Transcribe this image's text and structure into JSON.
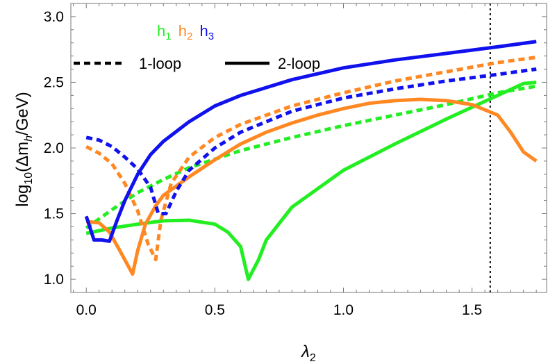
{
  "chart_data": {
    "type": "line",
    "xlabel_main": "λ",
    "xlabel_sub": "2",
    "ylabel_pre": "log",
    "ylabel_sub1": "10",
    "ylabel_mid": "(Δm",
    "ylabel_sub2": "h",
    "ylabel_post": "/GeV)",
    "xlim": [
      -0.06,
      1.79
    ],
    "ylim": [
      0.9,
      3.1
    ],
    "x_ticks": [
      0.0,
      0.5,
      1.0,
      1.5
    ],
    "x_tick_labels": [
      "0.0",
      "0.5",
      "1.0",
      "1.5"
    ],
    "y_ticks": [
      1.0,
      1.5,
      2.0,
      2.5,
      3.0
    ],
    "y_tick_labels": [
      "1.0",
      "1.5",
      "2.0",
      "2.5",
      "3.0"
    ],
    "reference_line": {
      "x": 1.5708,
      "style": "dotted",
      "color": "#000000"
    },
    "legend_hosts": [
      {
        "label": "h",
        "sub": "1",
        "color": "#22ee22"
      },
      {
        "label": "h",
        "sub": "2",
        "color": "#ff8822"
      },
      {
        "label": "h",
        "sub": "3",
        "color": "#1111ee"
      }
    ],
    "legend_styles": [
      {
        "label": "1-loop",
        "dash": true
      },
      {
        "label": "2-loop",
        "dash": false
      }
    ],
    "series": [
      {
        "host": "h1",
        "loop": "2-loop",
        "color": "#22ee22",
        "dash": false,
        "x": [
          0.0,
          0.1,
          0.2,
          0.3,
          0.4,
          0.5,
          0.55,
          0.6,
          0.63,
          0.67,
          0.7,
          0.8,
          1.0,
          1.2,
          1.4,
          1.6,
          1.7,
          1.75
        ],
        "y": [
          1.35,
          1.39,
          1.42,
          1.445,
          1.45,
          1.42,
          1.36,
          1.25,
          1.0,
          1.15,
          1.3,
          1.55,
          1.83,
          2.03,
          2.22,
          2.4,
          2.49,
          2.5
        ]
      },
      {
        "host": "h1",
        "loop": "1-loop",
        "color": "#22ee22",
        "dash": true,
        "x": [
          0.0,
          0.1,
          0.2,
          0.3,
          0.4,
          0.6,
          0.8,
          1.0,
          1.2,
          1.4,
          1.6,
          1.75
        ],
        "y": [
          1.39,
          1.53,
          1.66,
          1.76,
          1.85,
          1.98,
          2.08,
          2.17,
          2.25,
          2.33,
          2.42,
          2.47
        ]
      },
      {
        "host": "h2",
        "loop": "2-loop",
        "color": "#ff8822",
        "dash": false,
        "x": [
          0.0,
          0.05,
          0.09,
          0.13,
          0.18,
          0.2,
          0.23,
          0.27,
          0.3,
          0.4,
          0.5,
          0.6,
          0.7,
          0.8,
          0.9,
          1.0,
          1.1,
          1.2,
          1.3,
          1.4,
          1.5,
          1.6,
          1.65,
          1.7,
          1.75
        ],
        "y": [
          1.44,
          1.43,
          1.36,
          1.22,
          1.04,
          1.22,
          1.42,
          1.56,
          1.64,
          1.78,
          1.91,
          2.03,
          2.12,
          2.19,
          2.25,
          2.3,
          2.34,
          2.36,
          2.37,
          2.36,
          2.33,
          2.25,
          2.12,
          1.97,
          1.9
        ]
      },
      {
        "host": "h2",
        "loop": "1-loop",
        "color": "#ff8822",
        "dash": true,
        "x": [
          0.0,
          0.05,
          0.1,
          0.15,
          0.2,
          0.24,
          0.27,
          0.29,
          0.33,
          0.4,
          0.5,
          0.6,
          0.8,
          1.0,
          1.2,
          1.4,
          1.6,
          1.75
        ],
        "y": [
          2.01,
          1.96,
          1.88,
          1.73,
          1.52,
          1.27,
          1.15,
          1.45,
          1.73,
          1.93,
          2.08,
          2.18,
          2.32,
          2.42,
          2.51,
          2.58,
          2.65,
          2.69
        ]
      },
      {
        "host": "h3",
        "loop": "2-loop",
        "color": "#1111ee",
        "dash": false,
        "x": [
          0.0,
          0.03,
          0.06,
          0.09,
          0.12,
          0.15,
          0.2,
          0.25,
          0.3,
          0.4,
          0.5,
          0.6,
          0.8,
          1.0,
          1.2,
          1.4,
          1.6,
          1.75
        ],
        "y": [
          1.48,
          1.3,
          1.3,
          1.29,
          1.45,
          1.6,
          1.8,
          1.95,
          2.05,
          2.2,
          2.32,
          2.4,
          2.52,
          2.61,
          2.67,
          2.72,
          2.77,
          2.81
        ]
      },
      {
        "host": "h3",
        "loop": "1-loop",
        "color": "#1111ee",
        "dash": true,
        "x": [
          0.0,
          0.05,
          0.1,
          0.15,
          0.2,
          0.25,
          0.28,
          0.31,
          0.35,
          0.4,
          0.5,
          0.6,
          0.8,
          1.0,
          1.2,
          1.4,
          1.6,
          1.75
        ],
        "y": [
          2.08,
          2.06,
          2.01,
          1.93,
          1.84,
          1.7,
          1.5,
          1.5,
          1.67,
          1.83,
          2.0,
          2.12,
          2.28,
          2.38,
          2.45,
          2.51,
          2.56,
          2.6
        ]
      }
    ]
  }
}
